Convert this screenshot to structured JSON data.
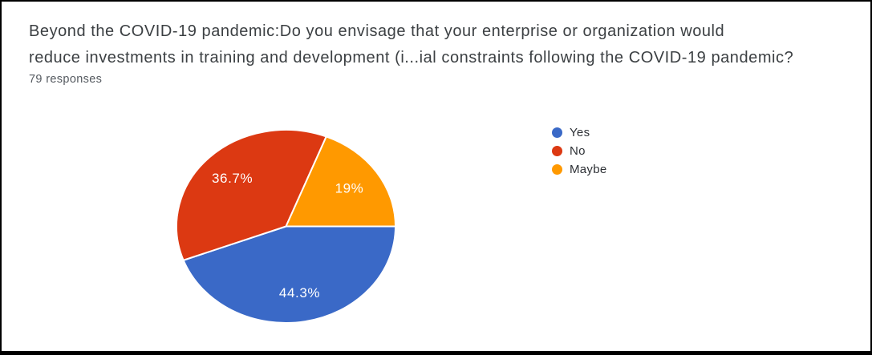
{
  "chart_data": {
    "type": "pie",
    "title": "Beyond the COVID-19 pandemic:Do you envisage that your enterprise or organization would\nreduce investments in training and development (i...ial constraints following the COVID-19 pandemic?",
    "subtitle": "79 responses",
    "categories": [
      "Yes",
      "No",
      "Maybe"
    ],
    "values": [
      44.3,
      36.7,
      19
    ],
    "value_labels": [
      "44.3%",
      "36.7%",
      "19%"
    ],
    "colors": [
      "#3a69c7",
      "#dc3912",
      "#ff9900"
    ],
    "label_color": "#ffffff",
    "legend_position": "right",
    "start_angle": "3-oclock",
    "direction": "clockwise",
    "total_responses": 79
  }
}
